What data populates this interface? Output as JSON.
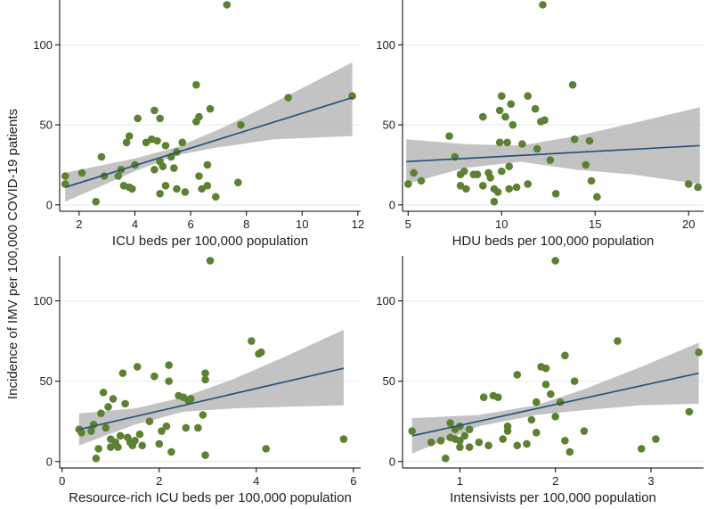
{
  "y_axis_label": "Incidence of IMV per 100,000 COVID-19 patients",
  "chart_data": [
    {
      "type": "scatter",
      "xlabel": "ICU beds per 100,000 population",
      "xlim": [
        1.3,
        12.1
      ],
      "ylim": [
        -4,
        128
      ],
      "xticks": [
        2,
        4,
        6,
        8,
        10,
        12
      ],
      "yticks": [
        0,
        50,
        100
      ],
      "fit": {
        "start": [
          1.5,
          11
        ],
        "end": [
          11.8,
          67
        ]
      },
      "ci_band": {
        "upper": [
          [
            1.5,
            20
          ],
          [
            4,
            29
          ],
          [
            5.5,
            36
          ],
          [
            7,
            47
          ],
          [
            9,
            64
          ],
          [
            11.8,
            89
          ]
        ],
        "lower": [
          [
            1.5,
            2
          ],
          [
            4,
            21
          ],
          [
            5.5,
            31
          ],
          [
            7,
            36
          ],
          [
            9,
            41
          ],
          [
            11.8,
            43
          ]
        ]
      },
      "points": [
        [
          1.5,
          18
        ],
        [
          1.5,
          13
        ],
        [
          2.1,
          20
        ],
        [
          2.6,
          2
        ],
        [
          2.8,
          30
        ],
        [
          2.9,
          18
        ],
        [
          3.4,
          18
        ],
        [
          3.5,
          22
        ],
        [
          3.6,
          12
        ],
        [
          3.7,
          39
        ],
        [
          3.8,
          43
        ],
        [
          3.8,
          11
        ],
        [
          3.9,
          10
        ],
        [
          4.0,
          25
        ],
        [
          4.1,
          54
        ],
        [
          4.4,
          39
        ],
        [
          4.6,
          41
        ],
        [
          4.7,
          59
        ],
        [
          4.7,
          22
        ],
        [
          4.8,
          40
        ],
        [
          4.9,
          54
        ],
        [
          4.9,
          27
        ],
        [
          4.9,
          7
        ],
        [
          5.0,
          24
        ],
        [
          5.1,
          12
        ],
        [
          5.1,
          37
        ],
        [
          5.3,
          30
        ],
        [
          5.4,
          23
        ],
        [
          5.5,
          10
        ],
        [
          5.5,
          33
        ],
        [
          5.7,
          39
        ],
        [
          5.8,
          8
        ],
        [
          6.2,
          75
        ],
        [
          6.2,
          52
        ],
        [
          6.3,
          18
        ],
        [
          6.3,
          55
        ],
        [
          6.4,
          10
        ],
        [
          6.6,
          12
        ],
        [
          6.6,
          25
        ],
        [
          6.7,
          60
        ],
        [
          6.9,
          5
        ],
        [
          7.3,
          125
        ],
        [
          7.8,
          50
        ],
        [
          7.7,
          14
        ],
        [
          9.5,
          67
        ],
        [
          11.8,
          68
        ]
      ]
    },
    {
      "type": "scatter",
      "xlabel": "HDU beds per 100,000 population",
      "xlim": [
        4.7,
        20.8
      ],
      "ylim": [
        -4,
        128
      ],
      "xticks": [
        5,
        10,
        15,
        20
      ],
      "yticks": [
        0,
        50,
        100
      ],
      "fit": {
        "start": [
          4.9,
          27
        ],
        "end": [
          20.6,
          37
        ]
      },
      "ci_band": {
        "upper": [
          [
            4.9,
            41
          ],
          [
            8,
            38
          ],
          [
            11,
            37
          ],
          [
            14,
            43
          ],
          [
            17,
            51
          ],
          [
            20.6,
            61
          ]
        ],
        "lower": [
          [
            4.9,
            13
          ],
          [
            8,
            23
          ],
          [
            11,
            27
          ],
          [
            14,
            22
          ],
          [
            17,
            19
          ],
          [
            20.6,
            13
          ]
        ]
      },
      "points": [
        [
          5.0,
          13
        ],
        [
          5.3,
          20
        ],
        [
          5.7,
          15
        ],
        [
          7.2,
          43
        ],
        [
          7.5,
          30
        ],
        [
          7.8,
          19
        ],
        [
          7.8,
          12
        ],
        [
          8.0,
          21
        ],
        [
          8.1,
          10
        ],
        [
          8.5,
          19
        ],
        [
          8.7,
          19
        ],
        [
          9.0,
          55
        ],
        [
          9.0,
          12
        ],
        [
          9.3,
          20
        ],
        [
          9.4,
          17
        ],
        [
          9.6,
          2
        ],
        [
          9.6,
          10
        ],
        [
          9.8,
          8
        ],
        [
          9.9,
          59
        ],
        [
          9.9,
          39
        ],
        [
          10.0,
          68
        ],
        [
          10.0,
          21
        ],
        [
          10.2,
          55
        ],
        [
          10.3,
          39
        ],
        [
          10.4,
          24
        ],
        [
          10.4,
          10
        ],
        [
          10.5,
          63
        ],
        [
          10.6,
          50
        ],
        [
          10.8,
          11
        ],
        [
          11.1,
          38
        ],
        [
          11.4,
          68
        ],
        [
          11.4,
          13
        ],
        [
          11.8,
          60
        ],
        [
          11.9,
          35
        ],
        [
          12.1,
          52
        ],
        [
          12.2,
          125
        ],
        [
          12.3,
          53
        ],
        [
          12.6,
          28
        ],
        [
          12.9,
          7
        ],
        [
          13.8,
          75
        ],
        [
          13.9,
          41
        ],
        [
          14.5,
          25
        ],
        [
          14.7,
          40
        ],
        [
          14.8,
          15
        ],
        [
          15.1,
          5
        ],
        [
          20.0,
          13
        ],
        [
          20.5,
          11
        ]
      ]
    },
    {
      "type": "scatter",
      "xlabel": "Resource-rich ICU beds per 100,000 population",
      "xlim": [
        -0.05,
        6.15
      ],
      "ylim": [
        -4,
        128
      ],
      "xticks": [
        0,
        2,
        4,
        6
      ],
      "yticks": [
        0,
        50,
        100
      ],
      "fit": {
        "start": [
          0.35,
          20
        ],
        "end": [
          5.8,
          58
        ]
      },
      "ci_band": {
        "upper": [
          [
            0.35,
            30
          ],
          [
            1.5,
            33
          ],
          [
            2.5,
            40
          ],
          [
            3.5,
            51
          ],
          [
            4.5,
            64
          ],
          [
            5.8,
            82
          ]
        ],
        "lower": [
          [
            0.35,
            10
          ],
          [
            1.5,
            23
          ],
          [
            2.5,
            31
          ],
          [
            3.5,
            33
          ],
          [
            4.5,
            34
          ],
          [
            5.8,
            35
          ]
        ]
      },
      "points": [
        [
          0.35,
          20
        ],
        [
          0.4,
          18
        ],
        [
          0.6,
          19
        ],
        [
          0.65,
          23
        ],
        [
          0.7,
          2
        ],
        [
          0.75,
          8
        ],
        [
          0.8,
          30
        ],
        [
          0.85,
          43
        ],
        [
          0.9,
          21
        ],
        [
          0.95,
          34
        ],
        [
          1.0,
          14
        ],
        [
          1.0,
          9
        ],
        [
          1.05,
          39
        ],
        [
          1.1,
          12
        ],
        [
          1.15,
          9
        ],
        [
          1.2,
          16
        ],
        [
          1.25,
          55
        ],
        [
          1.3,
          36
        ],
        [
          1.35,
          15
        ],
        [
          1.4,
          12
        ],
        [
          1.45,
          10
        ],
        [
          1.5,
          13
        ],
        [
          1.55,
          59
        ],
        [
          1.6,
          17
        ],
        [
          1.65,
          10
        ],
        [
          1.8,
          25
        ],
        [
          1.9,
          53
        ],
        [
          2.0,
          11
        ],
        [
          2.05,
          19
        ],
        [
          2.15,
          22
        ],
        [
          2.2,
          60
        ],
        [
          2.2,
          50
        ],
        [
          2.25,
          6
        ],
        [
          2.4,
          41
        ],
        [
          2.5,
          40
        ],
        [
          2.55,
          21
        ],
        [
          2.6,
          38
        ],
        [
          2.65,
          39
        ],
        [
          2.8,
          21
        ],
        [
          2.9,
          29
        ],
        [
          2.95,
          4
        ],
        [
          2.95,
          55
        ],
        [
          2.95,
          51
        ],
        [
          3.05,
          125
        ],
        [
          3.9,
          75
        ],
        [
          4.05,
          67
        ],
        [
          4.1,
          68
        ],
        [
          4.2,
          8
        ],
        [
          5.8,
          14
        ]
      ]
    },
    {
      "type": "scatter",
      "xlabel": "Intensivists per 100,000 population",
      "xlim": [
        0.4,
        3.55
      ],
      "ylim": [
        -4,
        128
      ],
      "xticks": [
        1,
        2,
        3
      ],
      "yticks": [
        0,
        50,
        100
      ],
      "fit": {
        "start": [
          0.5,
          16
        ],
        "end": [
          3.5,
          55
        ]
      },
      "ci_band": {
        "upper": [
          [
            0.5,
            27
          ],
          [
            1.2,
            29
          ],
          [
            1.8,
            35
          ],
          [
            2.3,
            45
          ],
          [
            2.9,
            59
          ],
          [
            3.5,
            74
          ]
        ],
        "lower": [
          [
            0.5,
            5
          ],
          [
            1.2,
            22
          ],
          [
            1.8,
            29
          ],
          [
            2.3,
            32
          ],
          [
            2.9,
            35
          ],
          [
            3.5,
            36
          ]
        ]
      },
      "points": [
        [
          0.5,
          19
        ],
        [
          0.7,
          12
        ],
        [
          0.8,
          13
        ],
        [
          0.85,
          2
        ],
        [
          0.9,
          15
        ],
        [
          0.9,
          24
        ],
        [
          0.95,
          14
        ],
        [
          0.95,
          20
        ],
        [
          1.0,
          22
        ],
        [
          1.0,
          9
        ],
        [
          1.0,
          13
        ],
        [
          1.05,
          16
        ],
        [
          1.1,
          9
        ],
        [
          1.1,
          20
        ],
        [
          1.2,
          12
        ],
        [
          1.25,
          40
        ],
        [
          1.3,
          10
        ],
        [
          1.35,
          41
        ],
        [
          1.4,
          40
        ],
        [
          1.45,
          14
        ],
        [
          1.5,
          22
        ],
        [
          1.5,
          19
        ],
        [
          1.6,
          54
        ],
        [
          1.6,
          10
        ],
        [
          1.7,
          11
        ],
        [
          1.75,
          26
        ],
        [
          1.8,
          37
        ],
        [
          1.8,
          18
        ],
        [
          1.85,
          59
        ],
        [
          1.9,
          48
        ],
        [
          1.9,
          58
        ],
        [
          1.95,
          42
        ],
        [
          2.0,
          125
        ],
        [
          2.0,
          28
        ],
        [
          2.05,
          37
        ],
        [
          2.1,
          66
        ],
        [
          2.1,
          13
        ],
        [
          2.15,
          6
        ],
        [
          2.2,
          50
        ],
        [
          2.3,
          19
        ],
        [
          2.65,
          75
        ],
        [
          2.9,
          8
        ],
        [
          3.05,
          14
        ],
        [
          3.4,
          31
        ],
        [
          3.5,
          68
        ]
      ]
    }
  ]
}
